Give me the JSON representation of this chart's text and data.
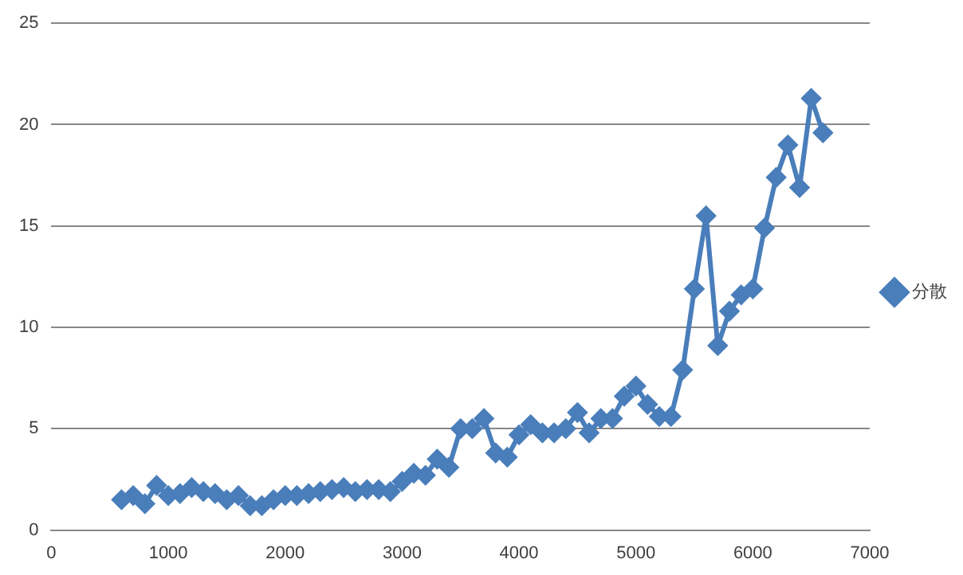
{
  "chart_data": {
    "type": "line",
    "x": [
      600,
      700,
      800,
      900,
      1000,
      1100,
      1200,
      1300,
      1400,
      1500,
      1600,
      1700,
      1800,
      1900,
      2000,
      2100,
      2200,
      2300,
      2400,
      2500,
      2600,
      2700,
      2800,
      2900,
      3000,
      3100,
      3200,
      3300,
      3400,
      3500,
      3600,
      3700,
      3800,
      3900,
      4000,
      4100,
      4200,
      4300,
      4400,
      4500,
      4600,
      4700,
      4800,
      4900,
      5000,
      5100,
      5200,
      5300,
      5400,
      5500,
      5600,
      5700,
      5800,
      5900,
      6000,
      6100,
      6200,
      6300,
      6400,
      6500,
      6600
    ],
    "series": [
      {
        "name": "分散",
        "color": "#4a7ebb",
        "values": [
          1.5,
          1.7,
          1.3,
          2.2,
          1.7,
          1.8,
          2.1,
          1.9,
          1.8,
          1.5,
          1.7,
          1.2,
          1.2,
          1.5,
          1.7,
          1.7,
          1.8,
          1.9,
          2.0,
          2.1,
          1.9,
          2.0,
          2.0,
          1.9,
          2.4,
          2.8,
          2.7,
          3.5,
          3.1,
          5.0,
          5.0,
          5.5,
          3.8,
          3.6,
          4.7,
          5.2,
          4.8,
          4.8,
          5.0,
          5.8,
          4.8,
          5.5,
          5.5,
          6.6,
          7.1,
          6.2,
          5.6,
          5.6,
          7.9,
          11.9,
          15.5,
          9.1,
          10.8,
          11.6,
          11.9,
          14.9,
          17.4,
          19.0,
          16.9,
          21.3,
          19.6
        ]
      }
    ],
    "xlim": [
      0,
      7000
    ],
    "xticks": [
      0,
      1000,
      2000,
      3000,
      4000,
      5000,
      6000,
      7000
    ],
    "ylim": [
      0,
      25
    ],
    "yticks": [
      0,
      5,
      10,
      15,
      20,
      25
    ],
    "grid": "y",
    "legend": "right",
    "marker": "diamond",
    "line_style": "solid"
  }
}
